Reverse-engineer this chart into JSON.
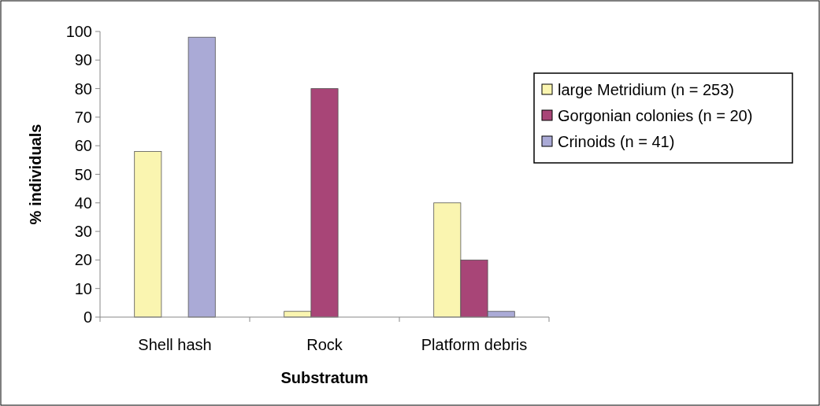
{
  "chart_data": {
    "type": "bar",
    "xlabel": "Substratum",
    "ylabel": "% individuals",
    "categories": [
      "Shell hash",
      "Rock",
      "Platform debris"
    ],
    "series": [
      {
        "name": "large Metridium (n = 253)",
        "color": "#faf5b0",
        "values": [
          58,
          2,
          40
        ]
      },
      {
        "name": "Gorgonian colonies (n = 20)",
        "color": "#a84577",
        "values": [
          0,
          80,
          20
        ]
      },
      {
        "name": "Crinoids (n = 41)",
        "color": "#aaaad6",
        "values": [
          98,
          0,
          2
        ]
      }
    ],
    "ylim": [
      0,
      100
    ],
    "yticks": [
      0,
      10,
      20,
      30,
      40,
      50,
      60,
      70,
      80,
      90,
      100
    ],
    "grid": false,
    "legend": "right"
  }
}
